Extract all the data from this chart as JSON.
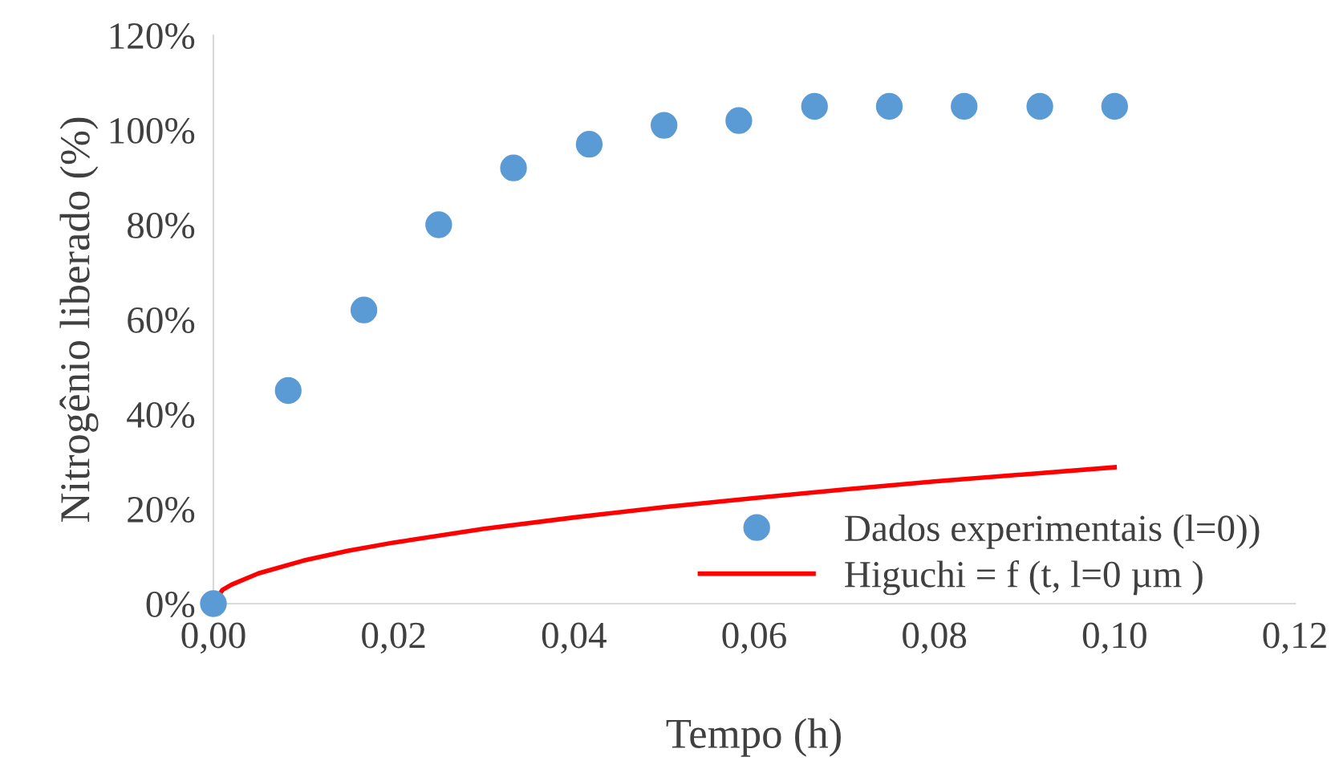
{
  "chart_data": {
    "type": "scatter",
    "xlabel": "Tempo (h)",
    "ylabel": "Nitrogênio liberado (%)",
    "xlim": [
      0,
      0.12
    ],
    "xticks": [
      {
        "value": 0,
        "label": "0,00"
      },
      {
        "value": 0.02,
        "label": "0,02"
      },
      {
        "value": 0.04,
        "label": "0,04"
      },
      {
        "value": 0.06,
        "label": "0,06"
      },
      {
        "value": 0.08,
        "label": "0,08"
      },
      {
        "value": 0.1,
        "label": "0,10"
      },
      {
        "value": 0.12,
        "label": "0,12"
      }
    ],
    "ylim": [
      0,
      120
    ],
    "yticks": [
      {
        "value": 0,
        "label": "0%"
      },
      {
        "value": 20,
        "label": "20%"
      },
      {
        "value": 40,
        "label": "40%"
      },
      {
        "value": 60,
        "label": "60%"
      },
      {
        "value": 80,
        "label": "80%"
      },
      {
        "value": 100,
        "label": "100%"
      },
      {
        "value": 120,
        "label": "120%"
      }
    ],
    "grid": false,
    "legend": "bottom right",
    "series": [
      {
        "name": "Dados experimentais (l=0))",
        "marker": "circle",
        "color": "#5b9bd5",
        "x": [
          0,
          0.0083,
          0.0167,
          0.025,
          0.0333,
          0.0417,
          0.05,
          0.0583,
          0.0667,
          0.075,
          0.0833,
          0.0917,
          0.1
        ],
        "values": [
          0,
          45,
          62,
          80,
          92,
          97,
          101,
          102,
          105,
          105,
          105,
          105,
          105
        ]
      },
      {
        "name": "Higuchi = f (t, l=0 µm )",
        "type": "line",
        "marker": "none",
        "line_style": "solid",
        "color": "#ff0000",
        "x": [
          0,
          0.001,
          0.002,
          0.005,
          0.01,
          0.015,
          0.02,
          0.03,
          0.04,
          0.05,
          0.06,
          0.07,
          0.08,
          0.09,
          0.1
        ],
        "values": [
          0,
          2.9,
          4,
          6.4,
          9.1,
          11.2,
          12.9,
          15.8,
          18.2,
          20.4,
          22.3,
          24.1,
          25.8,
          27.3,
          28.8
        ]
      }
    ]
  }
}
